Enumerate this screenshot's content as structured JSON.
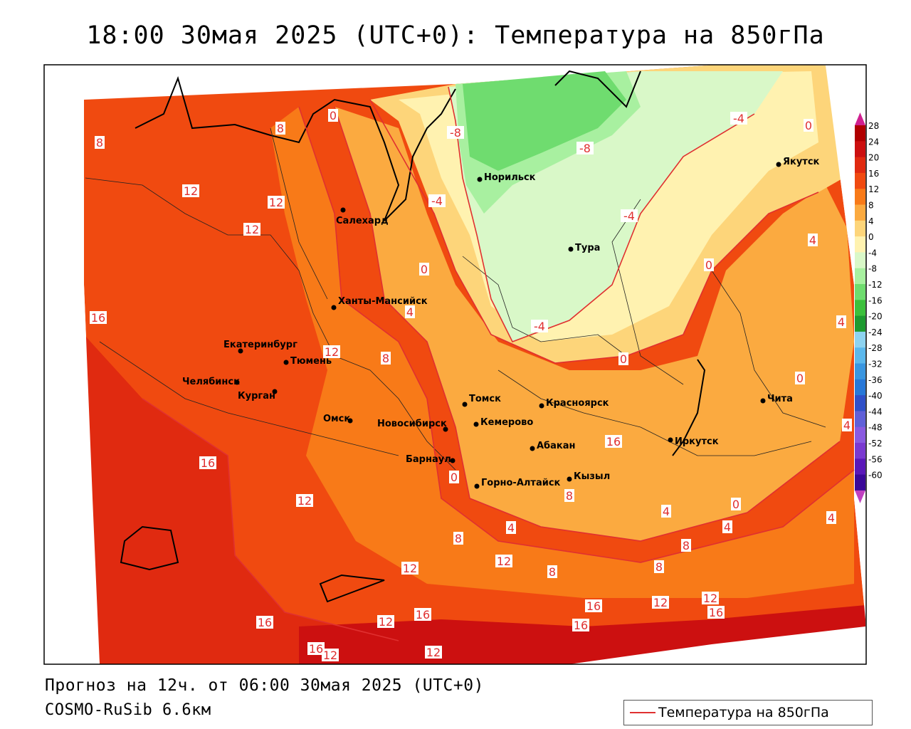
{
  "title": "18:00 30мая 2025 (UTC+0): Температура на 850гПа",
  "footer": {
    "forecast": "Прогноз на 12ч. от 06:00 30мая 2025 (UTC+0)",
    "model": "COSMO-RuSib 6.6км"
  },
  "legend": {
    "label": "Температура на 850гПа",
    "line_color": "#e03030"
  },
  "colorbar": {
    "labels": [
      "28",
      "24",
      "20",
      "16",
      "12",
      "8",
      "4",
      "0",
      "-4",
      "-8",
      "-12",
      "-16",
      "-20",
      "-24",
      "-28",
      "-32",
      "-36",
      "-40",
      "-44",
      "-48",
      "-52",
      "-56",
      "-60"
    ],
    "colors": [
      "#b00000",
      "#cc1010",
      "#e02a10",
      "#f04a10",
      "#f87a18",
      "#fbaa40",
      "#fdd57a",
      "#fff2b0",
      "#d9f8c8",
      "#a8f0a0",
      "#6fdc6f",
      "#3cc03c",
      "#1e9a30",
      "#8ed3f0",
      "#5cb8ec",
      "#3a96e0",
      "#2878d8",
      "#3050c8",
      "#6060d8",
      "#8a5ae0",
      "#7a3ad0",
      "#5a18b8",
      "#3a0898"
    ]
  },
  "cities": [
    {
      "name": "Якутск"
    },
    {
      "name": "Норильск"
    },
    {
      "name": "Салехард"
    },
    {
      "name": "Тура"
    },
    {
      "name": "Ханты-Мансийск"
    },
    {
      "name": "Екатеринбург"
    },
    {
      "name": "Тюмень"
    },
    {
      "name": "Челябинск"
    },
    {
      "name": "Курган"
    },
    {
      "name": "Омск"
    },
    {
      "name": "Новосибирск"
    },
    {
      "name": "Томск"
    },
    {
      "name": "Кемерово"
    },
    {
      "name": "Красноярск"
    },
    {
      "name": "Абакан"
    },
    {
      "name": "Барнаул"
    },
    {
      "name": "Горно-Алтайск"
    },
    {
      "name": "Кызыл"
    },
    {
      "name": "Иркутск"
    },
    {
      "name": "Чита"
    }
  ],
  "isotherm_labels": [
    "8",
    "8",
    "0",
    "-8",
    "-8",
    "-4",
    "-4",
    "0",
    "12",
    "12",
    "12",
    "0",
    "4",
    "-4",
    "-4",
    "0",
    "0",
    "4",
    "16",
    "16",
    "12",
    "12",
    "8",
    "8",
    "4",
    "0",
    "4",
    "4",
    "4",
    "0",
    "8",
    "8",
    "12",
    "12",
    "12",
    "16",
    "16",
    "16",
    "16",
    "12",
    "12",
    "16",
    "12",
    "16",
    "12",
    "16",
    "4",
    "8",
    "0",
    "4",
    "8"
  ]
}
